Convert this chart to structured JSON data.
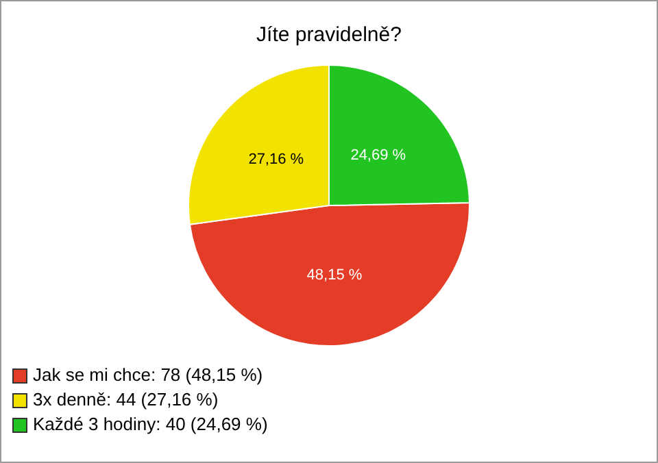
{
  "chart_data": {
    "type": "pie",
    "title": "Jíte pravidelně?",
    "categories": [
      "Jak se mi chce: 78 (48,15 %)",
      "3x denně: 44 (27,16 %)",
      "Každé 3 hodiny: 40 (24,69 %)"
    ],
    "values": [
      48.15,
      27.16,
      24.69
    ],
    "value_labels": [
      "48,15 %",
      "27,16 %",
      "24,69 %"
    ],
    "colors": [
      "#e43d27",
      "#f2e200",
      "#21c421"
    ],
    "legend": "bottom left"
  }
}
